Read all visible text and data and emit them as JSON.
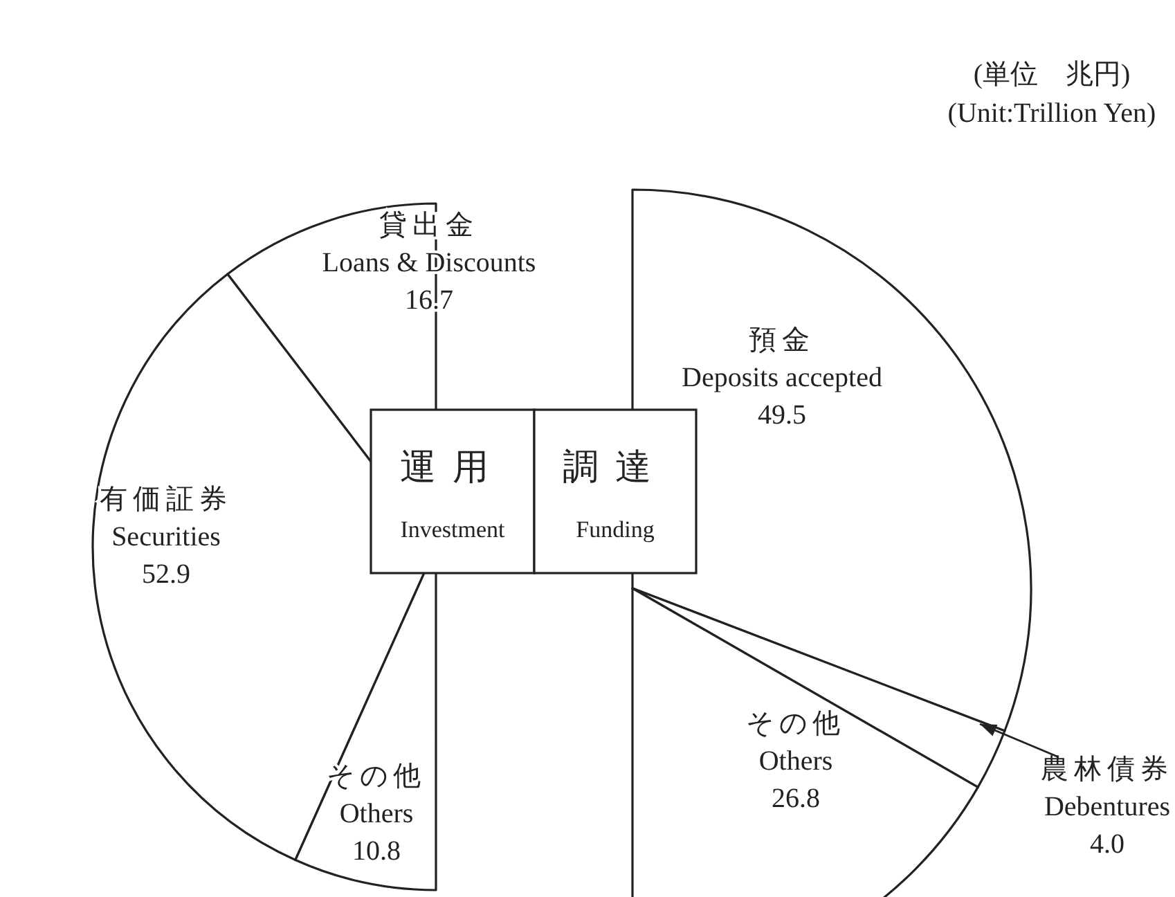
{
  "chart_data": [
    {
      "type": "pie",
      "title": "運用\nInvestment",
      "categories": [
        "貸出金\nLoans & Discounts",
        "有価証券\nSecurities",
        "その他\nOthers"
      ],
      "values": [
        16.7,
        52.9,
        10.8
      ],
      "colors": [
        "#ffffff",
        "#ffffff",
        "#ffffff"
      ],
      "value_labels": [
        "16.7",
        "52.9",
        "10.8"
      ]
    },
    {
      "type": "pie",
      "title": "調達\nFunding",
      "categories": [
        "預金\nDeposits accepted",
        "農林債券\nDebentures",
        "その他\nOthers"
      ],
      "values": [
        49.5,
        4.0,
        26.8
      ],
      "colors": [
        "#ffffff",
        "#ffffff",
        "#ffffff"
      ],
      "value_labels": [
        "49.5",
        "4.0",
        "26.8"
      ],
      "annotations": [
        "(単位　兆円)\n(Unit:Trillion Yen)"
      ]
    }
  ]
}
